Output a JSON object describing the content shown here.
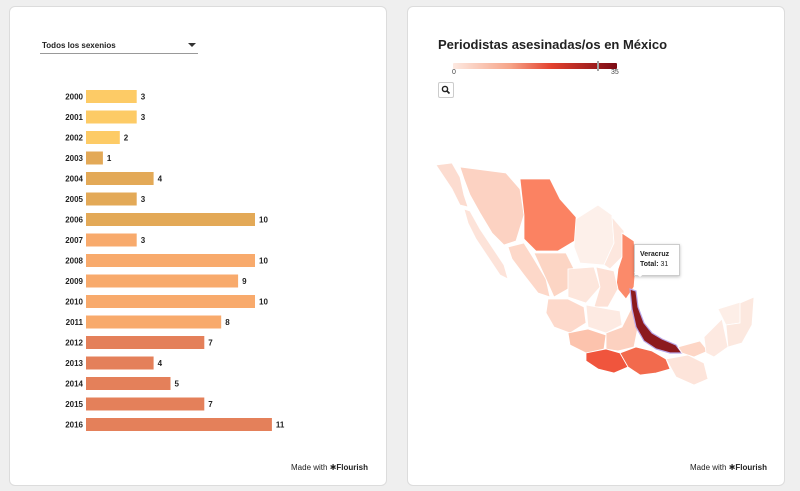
{
  "left": {
    "selector": {
      "label": "Todos los sexenios"
    },
    "made_with": {
      "prefix": "Made with",
      "brand": "Flourish"
    }
  },
  "right": {
    "title": "Periodistas asesinadas/os en México",
    "legend": {
      "min": "0",
      "max": "35"
    },
    "tooltip": {
      "name": "Veracruz",
      "label": "Total:",
      "value": "31"
    },
    "made_with": {
      "prefix": "Made with",
      "brand": "Flourish"
    }
  },
  "colors": {
    "sexenio_1": "#fdcb66",
    "sexenio_2": "#e3a957",
    "sexenio_3": "#f8aa6c",
    "sexenio_4": "#e4805a",
    "map_low": "#fde9e1",
    "map_high": "#7a0a14",
    "veracruz": "#8c1a1e"
  },
  "chart_data": [
    {
      "type": "bar",
      "orientation": "horizontal",
      "title": "",
      "categories": [
        "2000",
        "2001",
        "2002",
        "2003",
        "2004",
        "2005",
        "2006",
        "2007",
        "2008",
        "2009",
        "2010",
        "2011",
        "2012",
        "2013",
        "2014",
        "2015",
        "2016"
      ],
      "values": [
        3,
        3,
        2,
        1,
        4,
        3,
        10,
        3,
        10,
        9,
        10,
        8,
        7,
        4,
        5,
        7,
        11
      ],
      "groups": [
        1,
        1,
        1,
        2,
        2,
        2,
        2,
        3,
        3,
        3,
        3,
        3,
        4,
        4,
        4,
        4,
        4
      ],
      "xlim": [
        0,
        11
      ]
    },
    {
      "type": "heatmap",
      "title": "Periodistas asesinadas/os en México",
      "scale": [
        0,
        35
      ],
      "highlight": {
        "name": "Veracruz",
        "value": 31
      }
    }
  ]
}
